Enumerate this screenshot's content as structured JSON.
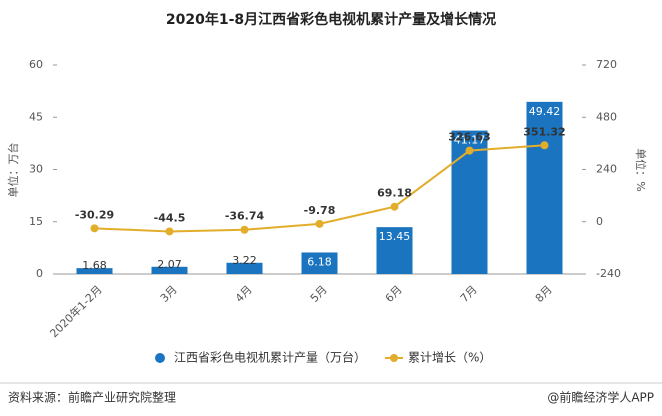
{
  "chart_data": {
    "type": "bar-line",
    "title": "2020年1-8月江西省彩色电视机累计产量及增长情况",
    "y_label": "单位：万台",
    "y2_label": "单位：%",
    "categories": [
      "2020年1-2月",
      "3月",
      "4月",
      "5月",
      "6月",
      "7月",
      "8月"
    ],
    "series": [
      {
        "name": "江西省彩色电视机累计产量（万台）",
        "color": "#1a74bf",
        "type": "bar",
        "values": [
          1.68,
          2.07,
          3.22,
          6.18,
          13.45,
          41.17,
          49.42
        ]
      },
      {
        "name": "累计增长（%）",
        "color": "#e3ad2c",
        "type": "line",
        "axis": "y2",
        "values": [
          -30.29,
          -44.5,
          -36.74,
          -9.78,
          69.18,
          326.63,
          351.32
        ]
      }
    ],
    "ylim": [
      0,
      60
    ],
    "yticks": [
      0,
      15,
      30,
      45,
      60
    ],
    "y2lim": [
      -240,
      720
    ],
    "y2ticks": [
      -240,
      0,
      240,
      480,
      720
    ],
    "source": "资料来源：前瞻产业研究院整理",
    "credit": "@前瞻经济学人APP"
  }
}
